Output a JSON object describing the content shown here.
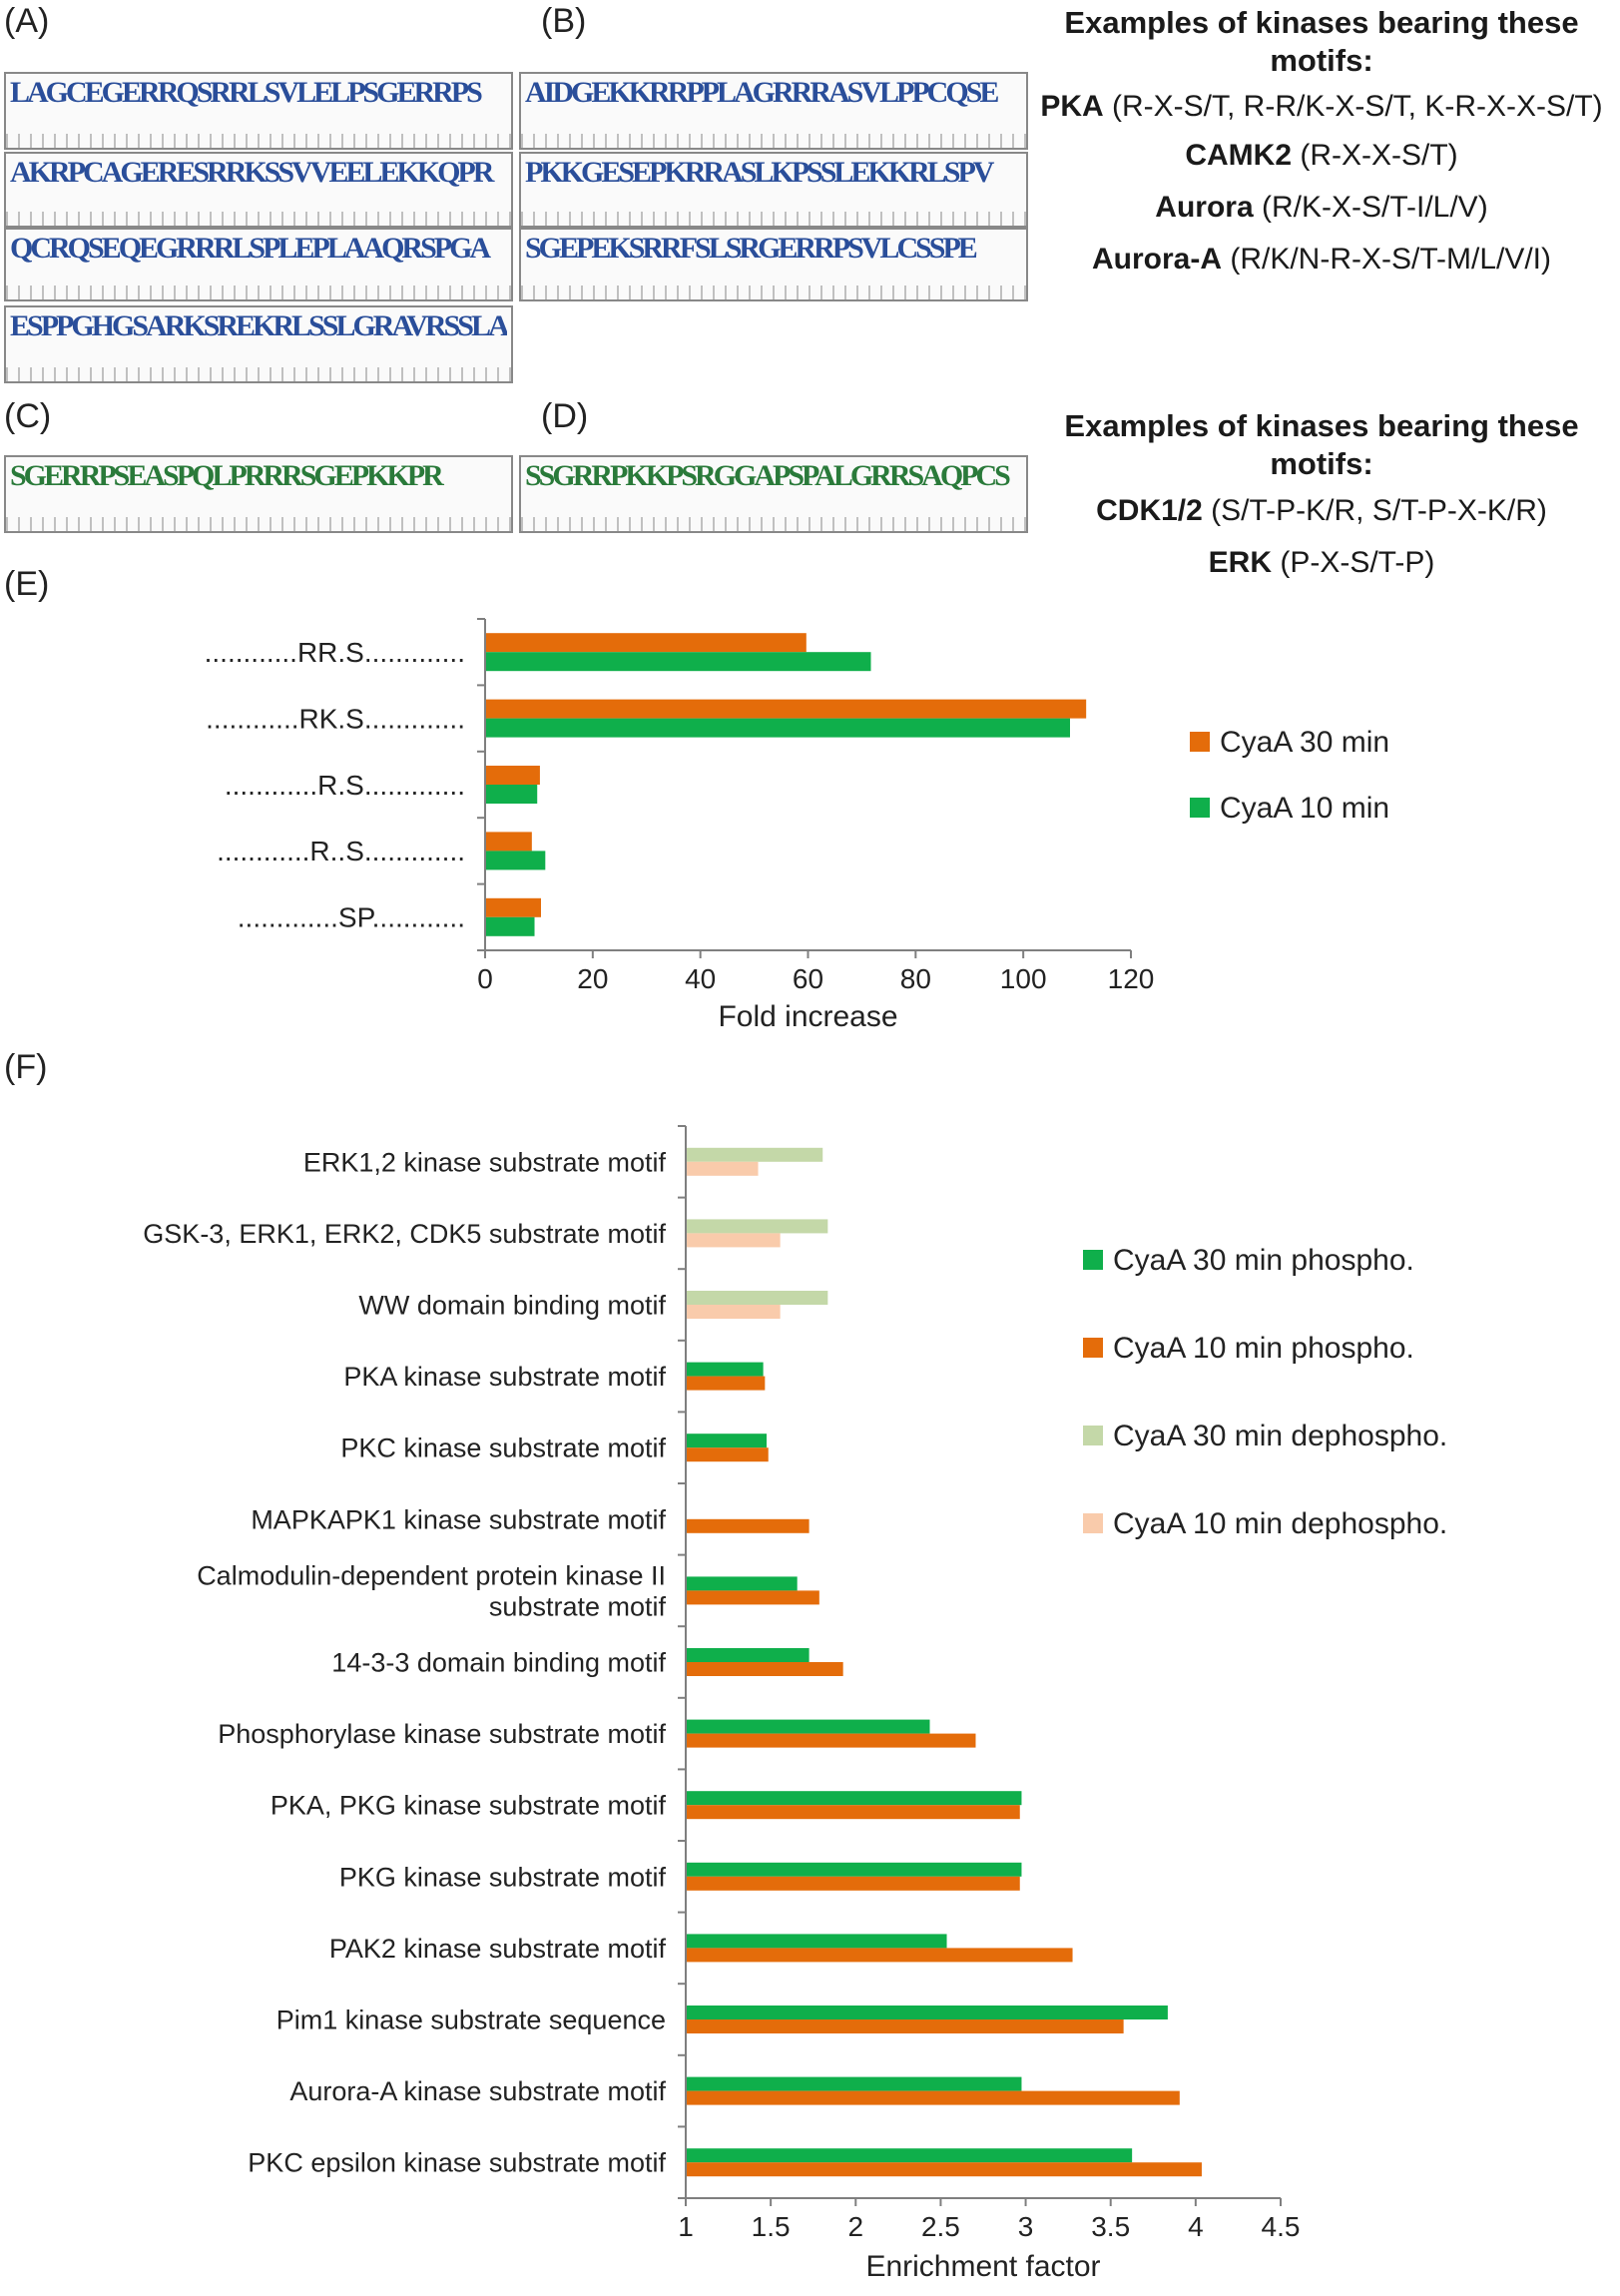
{
  "panels": {
    "A": "(A)",
    "B": "(B)",
    "C": "(C)",
    "D": "(D)",
    "E": "(E)",
    "F": "(F)"
  },
  "logos": {
    "A": [
      "LAGCEGERRQSRRLSVLELPSGERRPS",
      "AKRPCAGERESRRKSSVVEELEKKQPR",
      "QCRQSEQEGRRRLSPLEPLAAQRSPGA",
      "ESPPGHGSARKSREKRLSSLGRAVRSSLAS"
    ],
    "B": [
      "AIDGEKKRRPPLAGRRRASVLPPCQSE",
      "PKKGESEPKRRASLKPSSLEKKRLSPV",
      "SGEPEKSRRFSLSRGERRPSVLCSSPE"
    ],
    "C": "SGERRPSEASPQLPRRRSGEPKKPR",
    "D": "SSGRRPKKPSRGGAPSPALGRRSAQPCS"
  },
  "kinases_top": {
    "heading": "Examples of kinases bearing these motifs:",
    "lines": [
      {
        "name": "PKA",
        "motif": "(R-X-S/T, R-R/K-X-S/T, K-R-X-X-S/T)"
      },
      {
        "name": "CAMK2",
        "motif": "(R-X-X-S/T)"
      },
      {
        "name": "Aurora",
        "motif": "(R/K-X-S/T-I/L/V)"
      },
      {
        "name": "Aurora-A",
        "motif": "(R/K/N-R-X-S/T-M/L/V/I)"
      }
    ]
  },
  "kinases_bottom": {
    "heading": "Examples of kinases bearing these motifs:",
    "lines": [
      {
        "name": "CDK1/2",
        "motif": "(S/T-P-K/R, S/T-P-X-K/R)"
      },
      {
        "name": "ERK",
        "motif": "(P-X-S/T-P)"
      }
    ]
  },
  "colors": {
    "orange": "#E46C0A",
    "green": "#0FAF4B",
    "light_green": "#C4D8A8",
    "light_orange": "#F9CBAB",
    "axis": "#7f7f7f"
  },
  "chart_data": [
    {
      "id": "E",
      "type": "bar",
      "orientation": "horizontal",
      "categories": [
        "............RR.S.............",
        "............RK.S.............",
        "............R.S.............",
        "............R..S.............",
        ".............SP............"
      ],
      "series": [
        {
          "name": "CyaA 30 min",
          "color": "#E46C0A",
          "values": [
            59.5,
            111.5,
            10,
            8.5,
            10.2
          ]
        },
        {
          "name": "CyaA 10 min",
          "color": "#0FAF4B",
          "values": [
            71.5,
            108.5,
            9.5,
            11,
            9
          ]
        }
      ],
      "xlabel": "Fold increase",
      "xlim": [
        0,
        120
      ],
      "xticks": [
        "0",
        "20",
        "40",
        "60",
        "80",
        "100",
        "120"
      ],
      "legend": [
        "CyaA 30 min",
        "CyaA 10 min"
      ],
      "legend_position": "right"
    },
    {
      "id": "F",
      "type": "bar",
      "orientation": "horizontal",
      "categories": [
        "ERK1,2 kinase substrate motif",
        "GSK-3, ERK1, ERK2, CDK5 substrate motif",
        "WW domain binding motif",
        "PKA kinase substrate motif",
        "PKC kinase substrate motif",
        "MAPKAPK1 kinase substrate motif",
        "Calmodulin-dependent protein kinase II substrate motif",
        "14-3-3 domain binding motif",
        "Phosphorylase kinase substrate motif",
        "PKA, PKG kinase substrate motif",
        "PKG kinase substrate motif",
        "PAK2 kinase substrate motif",
        "Pim1 kinase substrate sequence",
        "Aurora-A kinase substrate motif",
        "PKC epsilon kinase substrate motif"
      ],
      "category_lines": [
        [
          "ERK1,2 kinase substrate motif"
        ],
        [
          "GSK-3, ERK1, ERK2, CDK5 substrate motif"
        ],
        [
          "WW domain binding motif"
        ],
        [
          "PKA kinase substrate motif"
        ],
        [
          "PKC kinase substrate motif"
        ],
        [
          "MAPKAPK1 kinase substrate motif"
        ],
        [
          "Calmodulin-dependent protein kinase II",
          "substrate motif"
        ],
        [
          "14-3-3 domain binding motif"
        ],
        [
          "Phosphorylase kinase substrate motif"
        ],
        [
          "PKA, PKG kinase substrate motif"
        ],
        [
          "PKG kinase substrate motif"
        ],
        [
          "PAK2 kinase substrate motif"
        ],
        [
          "Pim1 kinase substrate sequence"
        ],
        [
          "Aurora-A kinase substrate motif"
        ],
        [
          "PKC epsilon kinase substrate motif"
        ]
      ],
      "series": [
        {
          "name": "CyaA 30 min phospho.",
          "color": "#0FAF4B",
          "values": [
            null,
            null,
            null,
            1.45,
            1.47,
            null,
            1.65,
            1.72,
            2.43,
            2.97,
            2.97,
            2.53,
            3.83,
            2.97,
            3.62
          ]
        },
        {
          "name": "CyaA 10 min phospho.",
          "color": "#E46C0A",
          "values": [
            null,
            null,
            null,
            1.46,
            1.48,
            1.72,
            1.78,
            1.92,
            2.7,
            2.96,
            2.96,
            3.27,
            3.57,
            3.9,
            4.03
          ]
        },
        {
          "name": "CyaA 30 min dephospho.",
          "color": "#C4D8A8",
          "values": [
            1.8,
            1.83,
            1.83,
            null,
            null,
            null,
            null,
            null,
            null,
            null,
            null,
            null,
            null,
            null,
            null
          ]
        },
        {
          "name": "CyaA 10 min dephospho.",
          "color": "#F9CBAB",
          "values": [
            1.42,
            1.55,
            1.55,
            null,
            null,
            null,
            null,
            null,
            null,
            null,
            null,
            null,
            null,
            null,
            null
          ]
        }
      ],
      "xlabel": "Enrichment factor",
      "xlim": [
        1,
        4.5
      ],
      "xticks": [
        "1",
        "1.5",
        "2",
        "2.5",
        "3",
        "3.5",
        "4",
        "4.5"
      ],
      "legend": [
        "CyaA 30 min phospho.",
        "CyaA 10 min phospho.",
        "CyaA 30 min dephospho.",
        "CyaA 10 min dephospho."
      ],
      "legend_position": "right"
    }
  ]
}
